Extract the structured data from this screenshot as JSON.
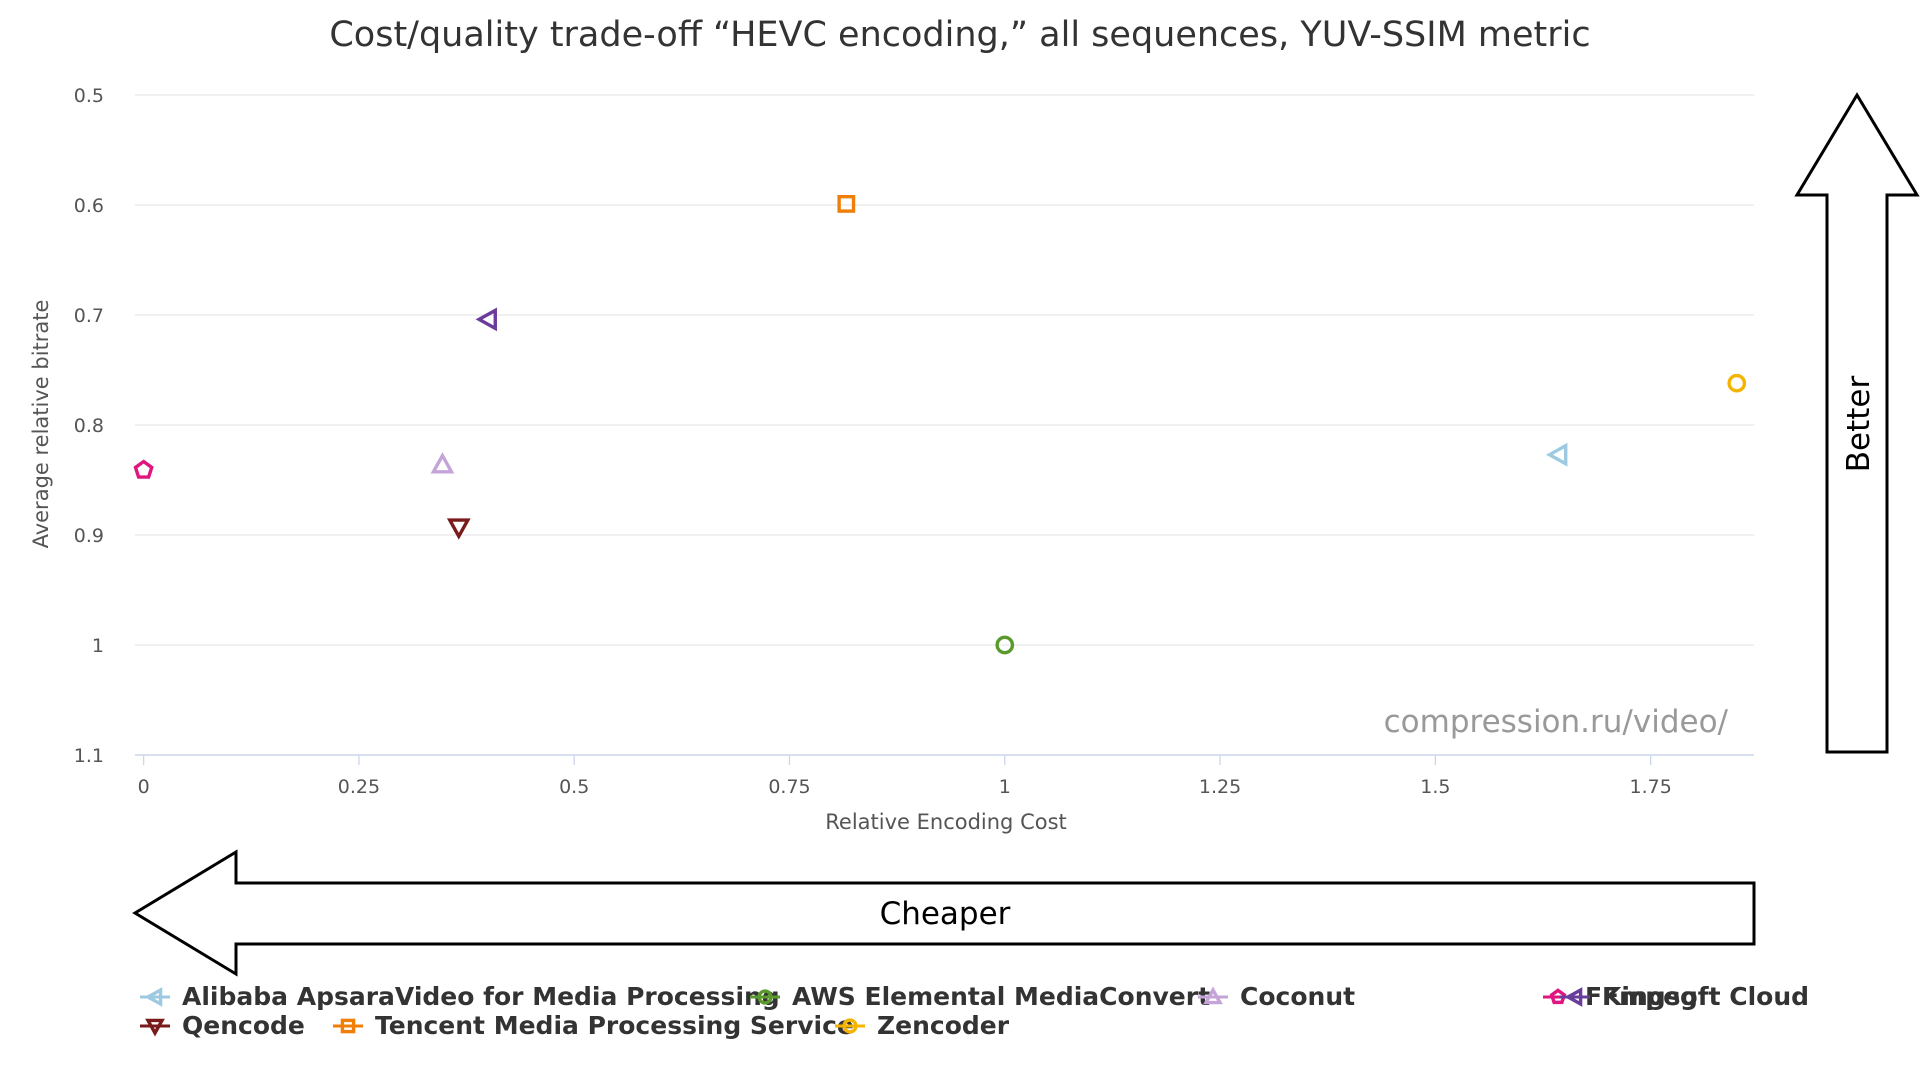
{
  "chart_data": {
    "type": "scatter",
    "title": "Cost/quality trade-off “HEVC encoding,” all sequences, YUV-SSIM metric",
    "xlabel": "Relative Encoding Cost",
    "ylabel": "Average relative bitrate",
    "xlim": [
      -0.01,
      1.87
    ],
    "ylim": [
      0.5,
      1.1
    ],
    "y_reversed": true,
    "x_ticks": [
      "0",
      "0.25",
      "0.5",
      "0.75",
      "1",
      "1.25",
      "1.5",
      "1.75"
    ],
    "x_tick_values": [
      0,
      0.25,
      0.5,
      0.75,
      1,
      1.25,
      1.5,
      1.75
    ],
    "y_ticks": [
      "0.5",
      "0.6",
      "0.7",
      "0.8",
      "0.9",
      "1",
      "1.1"
    ],
    "y_tick_values": [
      0.5,
      0.6,
      0.7,
      0.8,
      0.9,
      1.0,
      1.1
    ],
    "grid": "horizontal",
    "legend_position": "bottom",
    "series": [
      {
        "name": "Alibaba ApsaraVideo for Media Processing",
        "marker": "triangle-left",
        "color": "#9ecae1",
        "x": 1.643,
        "y": 0.827
      },
      {
        "name": "AWS Elemental MediaConvert",
        "marker": "circle",
        "color": "#5a9a2c",
        "x": 1.0,
        "y": 1.0
      },
      {
        "name": "Coconut",
        "marker": "triangle-up",
        "color": "#c5a5d8",
        "x": 0.347,
        "y": 0.836
      },
      {
        "name": "FFmpeg",
        "marker": "pentagon",
        "color": "#e0157f",
        "x": 0.0,
        "y": 0.841
      },
      {
        "name": "Kingsoft Cloud",
        "marker": "triangle-left",
        "color": "#6a3d9a",
        "x": 0.4,
        "y": 0.704
      },
      {
        "name": "Qencode",
        "marker": "triangle-down",
        "color": "#7a1b1b",
        "x": 0.366,
        "y": 0.893
      },
      {
        "name": "Tencent Media Processing Service",
        "marker": "square",
        "color": "#f07f09",
        "x": 0.816,
        "y": 0.599
      },
      {
        "name": "Zencoder",
        "marker": "circle",
        "color": "#f5b400",
        "x": 1.85,
        "y": 0.762
      }
    ]
  },
  "annotations": {
    "watermark": "compression.ru/video/",
    "better_label": "Better",
    "cheaper_label": "Cheaper"
  }
}
